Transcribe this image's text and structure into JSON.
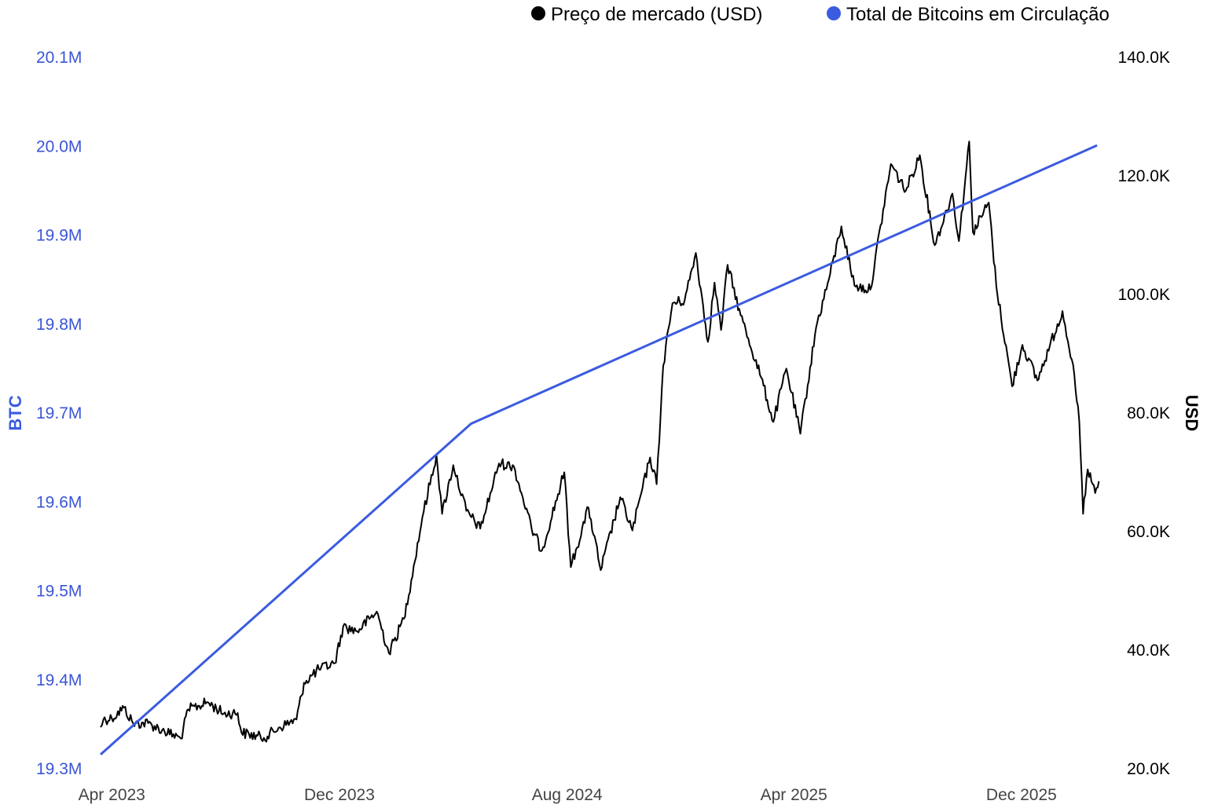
{
  "chart_data": {
    "type": "line",
    "title": "",
    "legend_position": "top-right",
    "legend": [
      {
        "label": "Preço de mercado (USD)",
        "color": "#000000"
      },
      {
        "label": "Total de Bitcoins em Circulação",
        "color": "#3b5be0"
      }
    ],
    "x_axis": {
      "type": "time",
      "range": [
        "2023-03-20",
        "2026-02-25"
      ],
      "tick_labels": [
        "Apr 2023",
        "Dec 2023",
        "Aug 2024",
        "Apr 2025",
        "Dec 2025"
      ],
      "tick_dates": [
        "2023-04-01",
        "2023-12-01",
        "2024-08-01",
        "2025-04-01",
        "2025-12-01"
      ]
    },
    "y_axis_left": {
      "label": "BTC",
      "range": [
        19300000,
        20100000
      ],
      "ticks": [
        19300000,
        19400000,
        19500000,
        19600000,
        19700000,
        19800000,
        19900000,
        20000000,
        20100000
      ],
      "tick_labels": [
        "19.3M",
        "19.4M",
        "19.5M",
        "19.6M",
        "19.7M",
        "19.8M",
        "19.9M",
        "20.0M",
        "20.1M"
      ],
      "color": "#3b5be0"
    },
    "y_axis_right": {
      "label": "USD",
      "range": [
        20000,
        140000
      ],
      "ticks": [
        20000,
        40000,
        60000,
        80000,
        100000,
        120000,
        140000
      ],
      "tick_labels": [
        "20.0K",
        "40.0K",
        "60.0K",
        "80.0K",
        "100.0K",
        "120.0K",
        "140.0K"
      ],
      "color": "#000000"
    },
    "series": [
      {
        "name": "Total de Bitcoins em Circulação",
        "axis": "left",
        "color": "#3b5be0",
        "points": [
          [
            "2023-03-20",
            19316000
          ],
          [
            "2024-04-20",
            19688000
          ],
          [
            "2026-02-20",
            20001000
          ]
        ]
      },
      {
        "name": "Preço de mercado (USD)",
        "axis": "right",
        "color": "#000000",
        "points": [
          [
            "2023-03-20",
            27000
          ],
          [
            "2023-03-23",
            28300
          ],
          [
            "2023-04-01",
            28500
          ],
          [
            "2023-04-14",
            30300
          ],
          [
            "2023-04-24",
            27600
          ],
          [
            "2023-05-10",
            27700
          ],
          [
            "2023-05-25",
            26500
          ],
          [
            "2023-06-14",
            25100
          ],
          [
            "2023-06-22",
            30000
          ],
          [
            "2023-07-13",
            31200
          ],
          [
            "2023-07-30",
            29300
          ],
          [
            "2023-08-14",
            29400
          ],
          [
            "2023-08-18",
            26100
          ],
          [
            "2023-09-11",
            25200
          ],
          [
            "2023-09-28",
            27000
          ],
          [
            "2023-10-16",
            28300
          ],
          [
            "2023-10-24",
            34500
          ],
          [
            "2023-11-09",
            36800
          ],
          [
            "2023-11-26",
            37800
          ],
          [
            "2023-12-05",
            44000
          ],
          [
            "2023-12-20",
            43200
          ],
          [
            "2024-01-10",
            46500
          ],
          [
            "2024-01-23",
            39500
          ],
          [
            "2024-02-08",
            45300
          ],
          [
            "2024-02-16",
            51800
          ],
          [
            "2024-02-28",
            62500
          ],
          [
            "2024-03-14",
            73000
          ],
          [
            "2024-03-20",
            63000
          ],
          [
            "2024-04-01",
            71200
          ],
          [
            "2024-04-15",
            63500
          ],
          [
            "2024-04-30",
            60500
          ],
          [
            "2024-05-20",
            71500
          ],
          [
            "2024-06-05",
            71000
          ],
          [
            "2024-06-24",
            60500
          ],
          [
            "2024-07-05",
            56800
          ],
          [
            "2024-07-29",
            70000
          ],
          [
            "2024-08-05",
            54000
          ],
          [
            "2024-08-24",
            64000
          ],
          [
            "2024-09-06",
            53500
          ],
          [
            "2024-09-27",
            65800
          ],
          [
            "2024-10-10",
            60200
          ],
          [
            "2024-10-29",
            72500
          ],
          [
            "2024-11-05",
            68000
          ],
          [
            "2024-11-12",
            88000
          ],
          [
            "2024-11-22",
            98500
          ],
          [
            "2024-12-05",
            99000
          ],
          [
            "2024-12-17",
            107000
          ],
          [
            "2024-12-30",
            92000
          ],
          [
            "2025-01-06",
            102000
          ],
          [
            "2025-01-13",
            94000
          ],
          [
            "2025-01-20",
            105000
          ],
          [
            "2025-02-03",
            96500
          ],
          [
            "2025-02-25",
            86000
          ],
          [
            "2025-03-10",
            78500
          ],
          [
            "2025-03-24",
            87500
          ],
          [
            "2025-04-08",
            76500
          ],
          [
            "2025-04-25",
            94500
          ],
          [
            "2025-05-10",
            103500
          ],
          [
            "2025-05-22",
            111500
          ],
          [
            "2025-06-05",
            101500
          ],
          [
            "2025-06-22",
            100800
          ],
          [
            "2025-07-14",
            122000
          ],
          [
            "2025-07-30",
            117500
          ],
          [
            "2025-08-14",
            123500
          ],
          [
            "2025-08-30",
            108300
          ],
          [
            "2025-09-18",
            117000
          ],
          [
            "2025-09-25",
            109000
          ],
          [
            "2025-10-06",
            125800
          ],
          [
            "2025-10-10",
            110500
          ],
          [
            "2025-10-27",
            115500
          ],
          [
            "2025-11-04",
            101500
          ],
          [
            "2025-11-21",
            84500
          ],
          [
            "2025-12-02",
            91500
          ],
          [
            "2025-12-18",
            85500
          ],
          [
            "2026-01-14",
            97200
          ],
          [
            "2026-01-24",
            89000
          ],
          [
            "2026-02-01",
            78500
          ],
          [
            "2026-02-05",
            63000
          ],
          [
            "2026-02-10",
            70500
          ],
          [
            "2026-02-18",
            66500
          ],
          [
            "2026-02-22",
            68500
          ]
        ]
      }
    ]
  }
}
